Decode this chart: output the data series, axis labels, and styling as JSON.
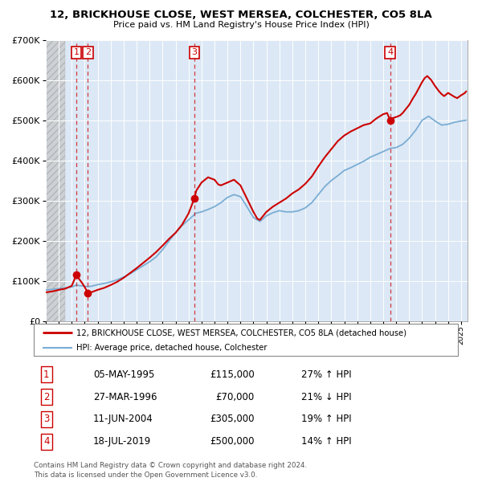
{
  "title": "12, BRICKHOUSE CLOSE, WEST MERSEA, COLCHESTER, CO5 8LA",
  "subtitle": "Price paid vs. HM Land Registry's House Price Index (HPI)",
  "transactions": [
    {
      "num": 1,
      "date_year": 1995.35,
      "price": 115000,
      "label": "05-MAY-1995",
      "amount": "£115,000",
      "hpi": "27% ↑ HPI"
    },
    {
      "num": 2,
      "date_year": 1996.24,
      "price": 70000,
      "label": "27-MAR-1996",
      "amount": "£70,000",
      "hpi": "21% ↓ HPI"
    },
    {
      "num": 3,
      "date_year": 2004.44,
      "price": 305000,
      "label": "11-JUN-2004",
      "amount": "£305,000",
      "hpi": "19% ↑ HPI"
    },
    {
      "num": 4,
      "date_year": 2019.54,
      "price": 500000,
      "label": "18-JUL-2019",
      "amount": "£500,000",
      "hpi": "14% ↑ HPI"
    }
  ],
  "property_line_color": "#cc0000",
  "hpi_line_color": "#7aadd4",
  "ylim": [
    0,
    700000
  ],
  "yticks": [
    0,
    100000,
    200000,
    300000,
    400000,
    500000,
    600000,
    700000
  ],
  "xlim_start": 1993.0,
  "xlim_end": 2025.5,
  "hatch_end": 1994.5,
  "legend_property": "12, BRICKHOUSE CLOSE, WEST MERSEA, COLCHESTER, CO5 8LA (detached house)",
  "legend_hpi": "HPI: Average price, detached house, Colchester",
  "footer": "Contains HM Land Registry data © Crown copyright and database right 2024.\nThis data is licensed under the Open Government Licence v3.0.",
  "hpi_data": [
    [
      1993.0,
      78000
    ],
    [
      1993.5,
      79000
    ],
    [
      1994.0,
      81000
    ],
    [
      1994.5,
      83000
    ],
    [
      1995.0,
      85000
    ],
    [
      1995.35,
      90000
    ],
    [
      1995.5,
      89000
    ],
    [
      1996.0,
      87000
    ],
    [
      1996.25,
      86000
    ],
    [
      1996.5,
      87000
    ],
    [
      1997.0,
      91000
    ],
    [
      1997.5,
      94000
    ],
    [
      1998.0,
      98000
    ],
    [
      1998.5,
      103000
    ],
    [
      1999.0,
      110000
    ],
    [
      1999.5,
      118000
    ],
    [
      2000.0,
      128000
    ],
    [
      2000.5,
      138000
    ],
    [
      2001.0,
      148000
    ],
    [
      2001.5,
      160000
    ],
    [
      2002.0,
      178000
    ],
    [
      2002.5,
      200000
    ],
    [
      2003.0,
      220000
    ],
    [
      2003.5,
      238000
    ],
    [
      2004.0,
      252000
    ],
    [
      2004.44,
      265000
    ],
    [
      2004.5,
      268000
    ],
    [
      2005.0,
      272000
    ],
    [
      2005.5,
      278000
    ],
    [
      2006.0,
      285000
    ],
    [
      2006.5,
      295000
    ],
    [
      2007.0,
      308000
    ],
    [
      2007.5,
      315000
    ],
    [
      2008.0,
      310000
    ],
    [
      2008.5,
      285000
    ],
    [
      2009.0,
      258000
    ],
    [
      2009.5,
      248000
    ],
    [
      2010.0,
      262000
    ],
    [
      2010.5,
      270000
    ],
    [
      2011.0,
      275000
    ],
    [
      2011.5,
      272000
    ],
    [
      2012.0,
      272000
    ],
    [
      2012.5,
      275000
    ],
    [
      2013.0,
      282000
    ],
    [
      2013.5,
      295000
    ],
    [
      2014.0,
      315000
    ],
    [
      2014.5,
      335000
    ],
    [
      2015.0,
      350000
    ],
    [
      2015.5,
      362000
    ],
    [
      2016.0,
      375000
    ],
    [
      2016.5,
      382000
    ],
    [
      2017.0,
      390000
    ],
    [
      2017.5,
      398000
    ],
    [
      2018.0,
      408000
    ],
    [
      2018.5,
      415000
    ],
    [
      2019.0,
      422000
    ],
    [
      2019.54,
      430000
    ],
    [
      2020.0,
      432000
    ],
    [
      2020.5,
      440000
    ],
    [
      2021.0,
      455000
    ],
    [
      2021.5,
      475000
    ],
    [
      2022.0,
      500000
    ],
    [
      2022.5,
      510000
    ],
    [
      2023.0,
      498000
    ],
    [
      2023.5,
      488000
    ],
    [
      2024.0,
      490000
    ],
    [
      2024.5,
      495000
    ],
    [
      2025.0,
      498000
    ],
    [
      2025.4,
      500000
    ]
  ],
  "prop_data": [
    [
      1993.0,
      72000
    ],
    [
      1993.5,
      74000
    ],
    [
      1994.0,
      78000
    ],
    [
      1994.5,
      81000
    ],
    [
      1995.0,
      88000
    ],
    [
      1995.35,
      115000
    ],
    [
      1995.5,
      108000
    ],
    [
      1995.8,
      95000
    ],
    [
      1996.0,
      85000
    ],
    [
      1996.24,
      70000
    ],
    [
      1996.5,
      72000
    ],
    [
      1997.0,
      78000
    ],
    [
      1997.5,
      83000
    ],
    [
      1998.0,
      90000
    ],
    [
      1998.5,
      98000
    ],
    [
      1999.0,
      108000
    ],
    [
      1999.5,
      120000
    ],
    [
      2000.0,
      132000
    ],
    [
      2000.5,
      145000
    ],
    [
      2001.0,
      158000
    ],
    [
      2001.5,
      172000
    ],
    [
      2002.0,
      188000
    ],
    [
      2002.5,
      205000
    ],
    [
      2003.0,
      220000
    ],
    [
      2003.5,
      240000
    ],
    [
      2004.0,
      268000
    ],
    [
      2004.44,
      305000
    ],
    [
      2004.6,
      325000
    ],
    [
      2005.0,
      345000
    ],
    [
      2005.5,
      358000
    ],
    [
      2006.0,
      352000
    ],
    [
      2006.3,
      340000
    ],
    [
      2006.5,
      338000
    ],
    [
      2007.0,
      345000
    ],
    [
      2007.5,
      352000
    ],
    [
      2008.0,
      338000
    ],
    [
      2008.5,
      305000
    ],
    [
      2009.0,
      272000
    ],
    [
      2009.3,
      255000
    ],
    [
      2009.5,
      252000
    ],
    [
      2010.0,
      272000
    ],
    [
      2010.5,
      285000
    ],
    [
      2011.0,
      295000
    ],
    [
      2011.5,
      305000
    ],
    [
      2012.0,
      318000
    ],
    [
      2012.5,
      328000
    ],
    [
      2013.0,
      342000
    ],
    [
      2013.5,
      360000
    ],
    [
      2014.0,
      385000
    ],
    [
      2014.5,
      408000
    ],
    [
      2015.0,
      428000
    ],
    [
      2015.5,
      448000
    ],
    [
      2016.0,
      462000
    ],
    [
      2016.5,
      472000
    ],
    [
      2017.0,
      480000
    ],
    [
      2017.5,
      488000
    ],
    [
      2018.0,
      492000
    ],
    [
      2018.3,
      500000
    ],
    [
      2018.5,
      505000
    ],
    [
      2019.0,
      515000
    ],
    [
      2019.3,
      518000
    ],
    [
      2019.54,
      500000
    ],
    [
      2019.7,
      505000
    ],
    [
      2020.0,
      508000
    ],
    [
      2020.3,
      512000
    ],
    [
      2020.5,
      518000
    ],
    [
      2021.0,
      538000
    ],
    [
      2021.3,
      555000
    ],
    [
      2021.5,
      565000
    ],
    [
      2022.0,
      595000
    ],
    [
      2022.2,
      605000
    ],
    [
      2022.4,
      610000
    ],
    [
      2022.7,
      600000
    ],
    [
      2023.0,
      585000
    ],
    [
      2023.3,
      572000
    ],
    [
      2023.5,
      565000
    ],
    [
      2023.7,
      560000
    ],
    [
      2024.0,
      568000
    ],
    [
      2024.3,
      562000
    ],
    [
      2024.5,
      558000
    ],
    [
      2024.7,
      555000
    ],
    [
      2025.0,
      562000
    ],
    [
      2025.3,
      568000
    ],
    [
      2025.4,
      572000
    ]
  ]
}
